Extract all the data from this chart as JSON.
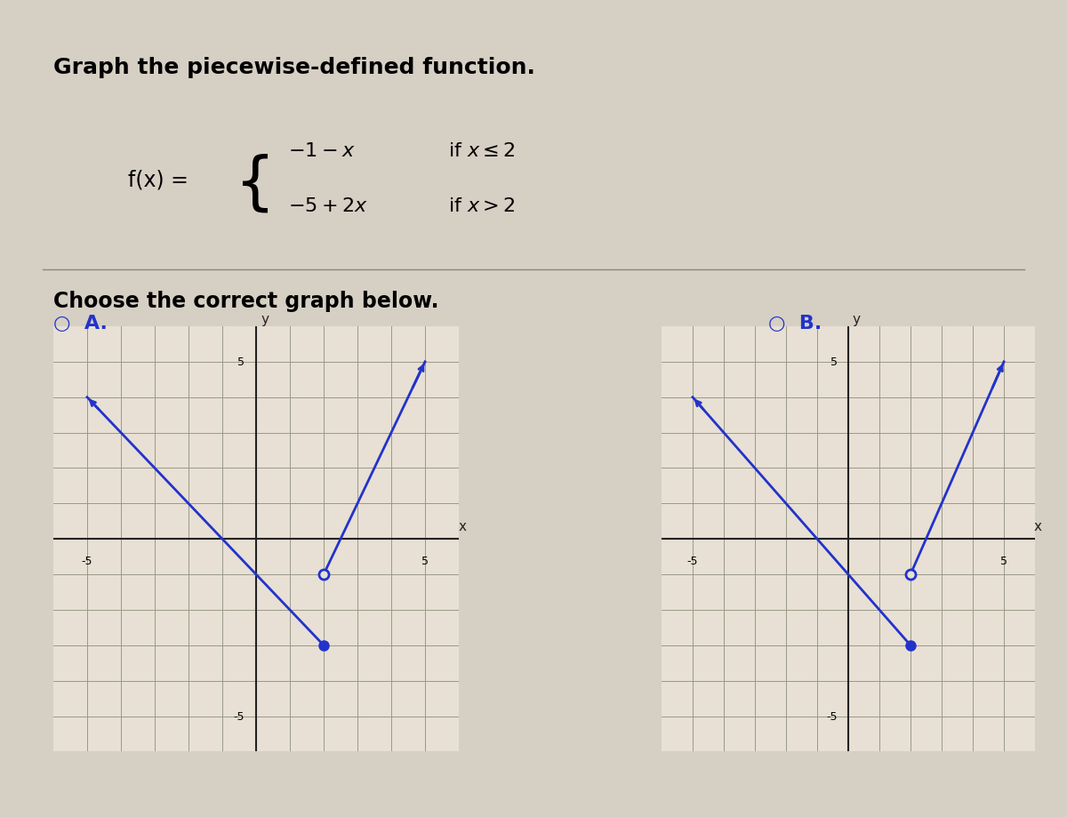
{
  "title": "Graph the piecewise-defined function.",
  "func_text_line1": "-1-x       if x≤2",
  "func_text_line2": "-5+2x   if x>2",
  "choose_text": "Choose the correct graph below.",
  "label_A": "A.",
  "label_B": "B.",
  "bg_color": "#d6cfc4",
  "graph_bg": "#e8e0d4",
  "line_color": "#2233cc",
  "grid_color": "#999988",
  "axis_color": "#222222",
  "xlim": [
    -6,
    6
  ],
  "ylim": [
    -6,
    6
  ],
  "graph_A_piece1": {
    "x_start": -5,
    "x_end": 2,
    "closed_end": true,
    "arrow_start": true
  },
  "graph_A_piece2": {
    "x_start": 2,
    "x_end": 5,
    "open_start": true,
    "arrow_end": true
  },
  "graph_B_piece1": {
    "x_start": -5,
    "x_end": 2,
    "closed_end": true,
    "arrow_start": true
  },
  "graph_B_piece2": {
    "x_start": 2,
    "x_end": 5,
    "open_start": true,
    "arrow_end": true
  }
}
